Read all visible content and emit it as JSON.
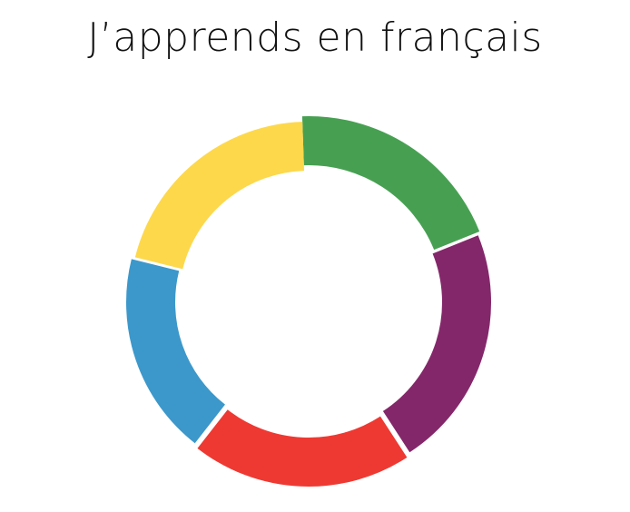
{
  "title": "J’apprends en français",
  "logo": {
    "segments": [
      {
        "name": "green",
        "color": "#47a052"
      },
      {
        "name": "purple",
        "color": "#84276a"
      },
      {
        "name": "red",
        "color": "#ee3932"
      },
      {
        "name": "blue",
        "color": "#3c98cb"
      },
      {
        "name": "yellow",
        "color": "#fdd84b"
      }
    ]
  }
}
